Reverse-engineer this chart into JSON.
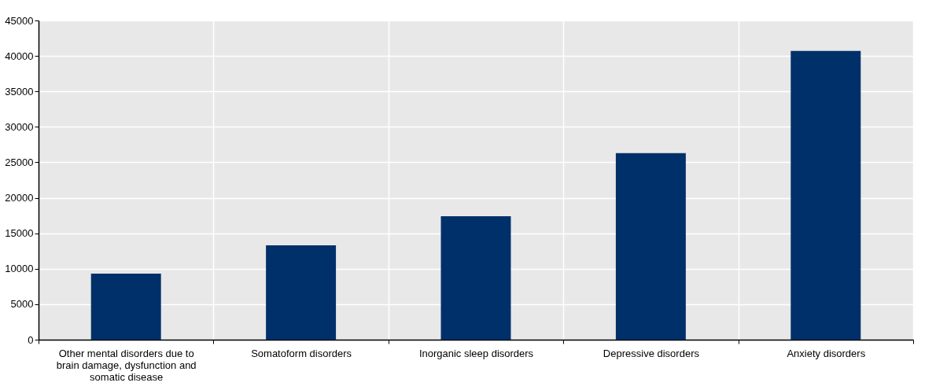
{
  "chart_data": {
    "type": "bar",
    "categories": [
      "Other mental disorders due to brain damage, dysfunction and somatic disease",
      "Somatoform disorders",
      "Inorganic sleep disorders",
      "Depressive disorders",
      "Anxiety disorders"
    ],
    "values": [
      9300,
      13300,
      17400,
      26300,
      40700
    ],
    "color": "#003069",
    "ylim": [
      0,
      45000
    ],
    "yticks": [
      0,
      5000,
      10000,
      15000,
      20000,
      25000,
      30000,
      35000,
      40000,
      45000
    ],
    "grid": true
  }
}
